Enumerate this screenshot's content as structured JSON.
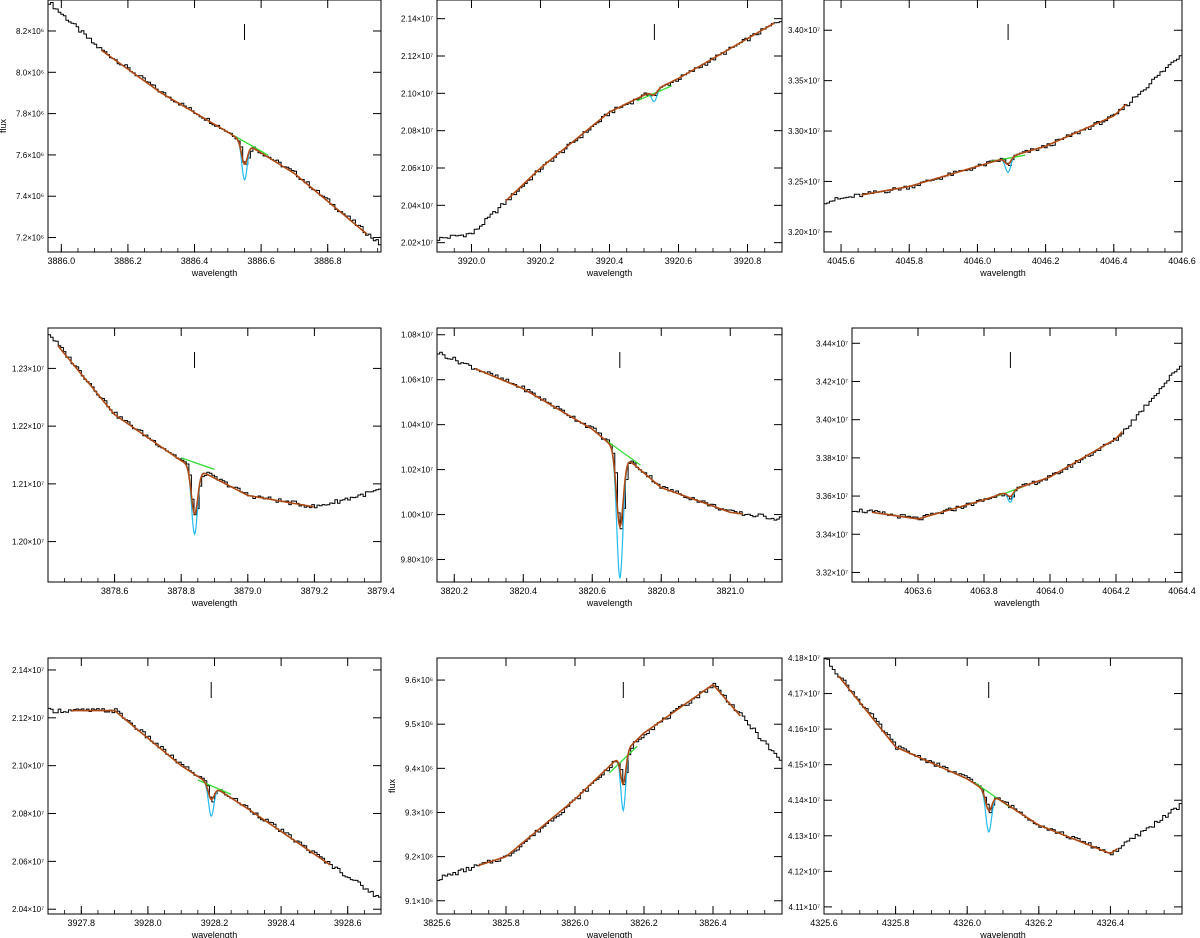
{
  "colors": {
    "observed": "#000000",
    "continuum": "#33dd33",
    "line_model": "#22bbee",
    "total_fit": "#b04a14",
    "marker": "#000000"
  },
  "chart_data": [
    {
      "type": "line",
      "xlabel": "wavelength",
      "ylabel": "flux",
      "xlim": [
        3885.96,
        3886.96
      ],
      "ylim": [
        7130000,
        8350000
      ],
      "y_exponent": 6,
      "xticks": [
        "3886.0",
        "3886.2",
        "3886.4",
        "3886.6",
        "3886.8"
      ],
      "xtick_values": [
        3886.0,
        3886.2,
        3886.4,
        3886.6,
        3886.8
      ],
      "yticks": [
        "7.2×10⁶",
        "7.4×10⁶",
        "7.6×10⁶",
        "7.8×10⁶",
        "8.0×10⁶",
        "8.2×10⁶"
      ],
      "ytick_values": [
        7200000,
        7400000,
        7600000,
        7800000,
        8000000,
        8200000
      ],
      "line_center": 3886.55,
      "fit_range": [
        3886.5,
        3886.62
      ],
      "line_depth": 180000,
      "fit_depth": 105000,
      "line_sigma": 0.008,
      "series": [
        {
          "name": "observed",
          "x": [
            3885.96,
            3886.1,
            3886.3,
            3886.5,
            3886.7,
            3886.96
          ],
          "y": [
            8340000,
            8130000,
            7900000,
            7710000,
            7510000,
            7160000
          ]
        },
        {
          "name": "continuum",
          "x": [
            3886.5,
            3886.62
          ],
          "y": [
            7710000,
            7600000
          ]
        }
      ]
    },
    {
      "type": "line",
      "xlabel": "wavelength",
      "ylabel": "",
      "xlim": [
        3919.9,
        3920.9
      ],
      "ylim": [
        20150000,
        21500000
      ],
      "y_exponent": 7,
      "xticks": [
        "3920.0",
        "3920.2",
        "3920.4",
        "3920.6",
        "3920.8"
      ],
      "xtick_values": [
        3920.0,
        3920.2,
        3920.4,
        3920.6,
        3920.8
      ],
      "yticks": [
        "2.02×10⁷",
        "2.04×10⁷",
        "2.06×10⁷",
        "2.08×10⁷",
        "2.10×10⁷",
        "2.12×10⁷",
        "2.14×10⁷"
      ],
      "ytick_values": [
        20200000,
        20400000,
        20600000,
        20800000,
        21000000,
        21200000,
        21400000
      ],
      "line_center": 3920.53,
      "fit_range": [
        3920.48,
        3920.58
      ],
      "line_depth": 60000,
      "fit_depth": 25000,
      "line_sigma": 0.008,
      "series": [
        {
          "name": "observed",
          "x": [
            3919.9,
            3920.0,
            3920.2,
            3920.4,
            3920.6,
            3920.9
          ],
          "y": [
            20220000,
            20250000,
            20600000,
            20900000,
            21080000,
            21400000
          ]
        },
        {
          "name": "continuum",
          "x": [
            3920.48,
            3920.58
          ],
          "y": [
            20960000,
            21040000
          ]
        }
      ]
    },
    {
      "type": "line",
      "xlabel": "wavelength",
      "ylabel": "",
      "xlim": [
        4045.55,
        4046.6
      ],
      "ylim": [
        31800000,
        34300000
      ],
      "y_exponent": 7,
      "xticks": [
        "4045.6",
        "4045.8",
        "4046.0",
        "4046.2",
        "4046.4",
        "4046.6"
      ],
      "xtick_values": [
        4045.6,
        4045.8,
        4046.0,
        4046.2,
        4046.4,
        4046.6
      ],
      "yticks": [
        "3.20×10⁷",
        "3.25×10⁷",
        "3.30×10⁷",
        "3.35×10⁷",
        "3.40×10⁷"
      ],
      "ytick_values": [
        32000000,
        32500000,
        33000000,
        33500000,
        34000000
      ],
      "line_center": 4046.09,
      "fit_range": [
        4046.04,
        4046.14
      ],
      "line_depth": 150000,
      "fit_depth": 70000,
      "line_sigma": 0.008,
      "series": [
        {
          "name": "observed",
          "x": [
            4045.55,
            4045.8,
            4046.0,
            4046.2,
            4046.4,
            4046.6
          ],
          "y": [
            32300000,
            32450000,
            32650000,
            32850000,
            33150000,
            33780000
          ]
        },
        {
          "name": "continuum",
          "x": [
            4046.04,
            4046.14
          ],
          "y": [
            32700000,
            32760000
          ]
        }
      ]
    },
    {
      "type": "line",
      "xlabel": "wavelength",
      "ylabel": "",
      "xlim": [
        3878.4,
        3879.4
      ],
      "ylim": [
        11930000,
        12370000
      ],
      "y_exponent": 7,
      "xticks": [
        "3878.6",
        "3878.8",
        "3879.0",
        "3879.2",
        "3879.4"
      ],
      "xtick_values": [
        3878.6,
        3878.8,
        3879.0,
        3879.2,
        3879.4
      ],
      "yticks": [
        "1.20×10⁷",
        "1.21×10⁷",
        "1.22×10⁷",
        "1.23×10⁷"
      ],
      "ytick_values": [
        12000000,
        12100000,
        12200000,
        12300000
      ],
      "line_center": 3878.84,
      "fit_range": [
        3878.8,
        3878.9
      ],
      "line_depth": 115000,
      "fit_depth": 80000,
      "line_sigma": 0.009,
      "series": [
        {
          "name": "observed",
          "x": [
            3878.4,
            3878.6,
            3878.8,
            3879.0,
            3879.2,
            3879.4
          ],
          "y": [
            12360000,
            12220000,
            12140000,
            12080000,
            12060000,
            12090000
          ]
        },
        {
          "name": "continuum",
          "x": [
            3878.8,
            3878.9
          ],
          "y": [
            12145000,
            12125000
          ]
        }
      ]
    },
    {
      "type": "line",
      "xlabel": "wavelength",
      "ylabel": "",
      "xlim": [
        3820.15,
        3821.15
      ],
      "ylim": [
        9700000,
        10830000
      ],
      "y_exponent": 6,
      "xticks": [
        "3820.2",
        "3820.4",
        "3820.6",
        "3820.8",
        "3821.0"
      ],
      "xtick_values": [
        3820.2,
        3820.4,
        3820.6,
        3820.8,
        3821.0
      ],
      "yticks": [
        "9.80×10⁶",
        "1.00×10⁷",
        "1.02×10⁷",
        "1.04×10⁷",
        "1.06×10⁷",
        "1.08×10⁷"
      ],
      "ytick_values": [
        9800000,
        10000000,
        10200000,
        10400000,
        10600000,
        10800000
      ],
      "line_center": 3820.68,
      "fit_range": [
        3820.64,
        3820.74
      ],
      "line_depth": 560000,
      "fit_depth": 330000,
      "line_sigma": 0.009,
      "series": [
        {
          "name": "observed",
          "x": [
            3820.15,
            3820.4,
            3820.6,
            3820.8,
            3821.0,
            3821.15
          ],
          "y": [
            10720000,
            10560000,
            10380000,
            10120000,
            10010000,
            9980000
          ]
        },
        {
          "name": "continuum",
          "x": [
            3820.64,
            3820.74
          ],
          "y": [
            10330000,
            10220000
          ]
        }
      ]
    },
    {
      "type": "line",
      "xlabel": "wavelength",
      "ylabel": "",
      "xlim": [
        4063.4,
        4064.4
      ],
      "ylim": [
        33150000,
        34480000
      ],
      "y_exponent": 7,
      "xticks": [
        "4063.6",
        "4063.8",
        "4064.0",
        "4064.2",
        "4064.4"
      ],
      "xtick_values": [
        4063.6,
        4063.8,
        4064.0,
        4064.2,
        4064.4
      ],
      "yticks": [
        "3.32×10⁷",
        "3.34×10⁷",
        "3.36×10⁷",
        "3.38×10⁷",
        "3.40×10⁷",
        "3.42×10⁷",
        "3.44×10⁷"
      ],
      "ytick_values": [
        33200000,
        33400000,
        33600000,
        33800000,
        34000000,
        34200000,
        34400000
      ],
      "line_center": 4063.88,
      "fit_range": [
        4063.84,
        4063.92
      ],
      "line_depth": 60000,
      "fit_depth": 30000,
      "line_sigma": 0.008,
      "series": [
        {
          "name": "observed",
          "x": [
            4063.4,
            4063.6,
            4063.8,
            4064.0,
            4064.2,
            4064.4
          ],
          "y": [
            33530000,
            33480000,
            33580000,
            33700000,
            33900000,
            34300000
          ]
        },
        {
          "name": "continuum",
          "x": [
            4063.84,
            4063.92
          ],
          "y": [
            33600000,
            33650000
          ]
        }
      ]
    },
    {
      "type": "line",
      "xlabel": "wavelength",
      "ylabel": "",
      "xlim": [
        3927.7,
        3928.7
      ],
      "ylim": [
        20380000,
        21450000
      ],
      "y_exponent": 7,
      "xticks": [
        "3927.8",
        "3928.0",
        "3928.2",
        "3928.4",
        "3928.6"
      ],
      "xtick_values": [
        3927.8,
        3928.0,
        3928.2,
        3928.4,
        3928.6
      ],
      "yticks": [
        "2.04×10⁷",
        "2.06×10⁷",
        "2.08×10⁷",
        "2.10×10⁷",
        "2.12×10⁷",
        "2.14×10⁷"
      ],
      "ytick_values": [
        20400000,
        20600000,
        20800000,
        21000000,
        21200000,
        21400000
      ],
      "line_center": 3928.19,
      "fit_range": [
        3928.15,
        3928.25
      ],
      "line_depth": 130000,
      "fit_depth": 60000,
      "line_sigma": 0.008,
      "series": [
        {
          "name": "observed",
          "x": [
            3927.7,
            3927.9,
            3928.1,
            3928.3,
            3928.5,
            3928.7
          ],
          "y": [
            21230000,
            21230000,
            21000000,
            20820000,
            20630000,
            20440000
          ]
        },
        {
          "name": "continuum",
          "x": [
            3928.15,
            3928.25
          ],
          "y": [
            20940000,
            20880000
          ]
        }
      ]
    },
    {
      "type": "line",
      "xlabel": "wavelength",
      "ylabel": "flux",
      "xlim": [
        3825.6,
        3826.6
      ],
      "ylim": [
        9070000,
        9650000
      ],
      "y_exponent": 6,
      "xticks": [
        "3825.6",
        "3825.8",
        "3826.0",
        "3826.2",
        "3826.4"
      ],
      "xtick_values": [
        3825.6,
        3825.8,
        3826.0,
        3826.2,
        3826.4
      ],
      "yticks": [
        "9.1×10⁶",
        "9.2×10⁶",
        "9.3×10⁶",
        "9.4×10⁶",
        "9.5×10⁶",
        "9.6×10⁶"
      ],
      "ytick_values": [
        9100000,
        9200000,
        9300000,
        9400000,
        9500000,
        9600000
      ],
      "line_center": 3826.14,
      "fit_range": [
        3826.1,
        3826.18
      ],
      "line_depth": 130000,
      "fit_depth": 70000,
      "line_sigma": 0.007,
      "series": [
        {
          "name": "observed",
          "x": [
            3825.6,
            3825.8,
            3826.0,
            3826.2,
            3826.4,
            3826.6
          ],
          "y": [
            9150000,
            9200000,
            9330000,
            9480000,
            9590000,
            9410000
          ]
        },
        {
          "name": "continuum",
          "x": [
            3826.1,
            3826.18
          ],
          "y": [
            9390000,
            9450000
          ]
        }
      ]
    },
    {
      "type": "line",
      "xlabel": "wavelength",
      "ylabel": "",
      "xlim": [
        4325.6,
        4326.6
      ],
      "ylim": [
        41080000,
        41800000
      ],
      "y_exponent": 7,
      "xticks": [
        "4325.6",
        "4325.8",
        "4326.0",
        "4326.2",
        "4326.4"
      ],
      "xtick_values": [
        4325.6,
        4325.8,
        4326.0,
        4326.2,
        4326.4
      ],
      "yticks": [
        "4.11×10⁷",
        "4.12×10⁷",
        "4.13×10⁷",
        "4.14×10⁷",
        "4.15×10⁷",
        "4.16×10⁷",
        "4.17×10⁷",
        "4.18×10⁷"
      ],
      "ytick_values": [
        41100000,
        41200000,
        41300000,
        41400000,
        41500000,
        41600000,
        41700000,
        41800000
      ],
      "line_center": 4326.06,
      "fit_range": [
        4326.02,
        4326.12
      ],
      "line_depth": 110000,
      "fit_depth": 50000,
      "line_sigma": 0.008,
      "series": [
        {
          "name": "observed",
          "x": [
            4325.6,
            4325.8,
            4326.0,
            4326.2,
            4326.4,
            4326.6
          ],
          "y": [
            41800000,
            41550000,
            41460000,
            41330000,
            41250000,
            41390000
          ]
        },
        {
          "name": "continuum",
          "x": [
            4326.02,
            4326.12
          ],
          "y": [
            41450000,
            41380000
          ]
        }
      ]
    }
  ]
}
